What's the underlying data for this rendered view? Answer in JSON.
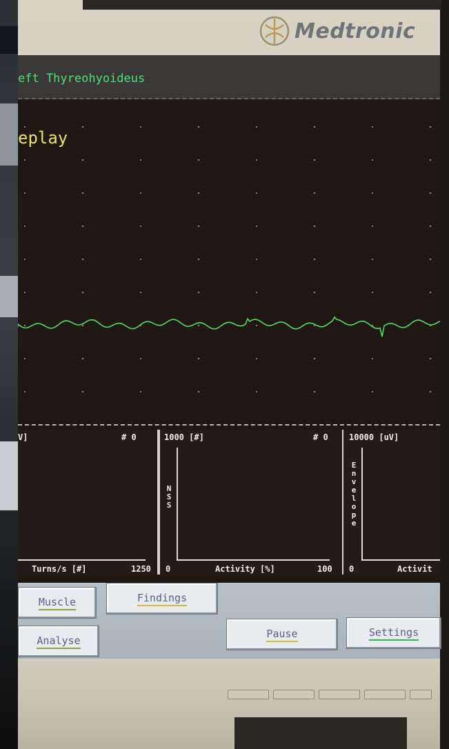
{
  "brand": {
    "name": "Medtronic"
  },
  "screen": {
    "title": "eft Thyreohyoideus",
    "mode_label": "eplay"
  },
  "panels": [
    {
      "header_left": "V]",
      "header_right": "# 0",
      "footer_left": "Turns/s [#]",
      "footer_right": "1250",
      "y_label": ""
    },
    {
      "header_left": "1000 [#]",
      "header_right": "# 0",
      "footer_left": "0",
      "footer_mid": "Activity [%]",
      "footer_right": "100",
      "y_label": "NSS"
    },
    {
      "header_left": "10000 [uV]",
      "header_right": "",
      "footer_left": "0",
      "footer_mid": "Activit",
      "y_label": "Envelope"
    }
  ],
  "buttons": {
    "muscle": "Muscle",
    "findings": "Findings",
    "analyse": "Analyse",
    "pause": "Pause",
    "settings": "Settings"
  },
  "colors": {
    "screen_bg": "#1f1812",
    "trace": "#58d86a",
    "title_text": "#4ee07a",
    "mode_text": "#e9e36a"
  }
}
